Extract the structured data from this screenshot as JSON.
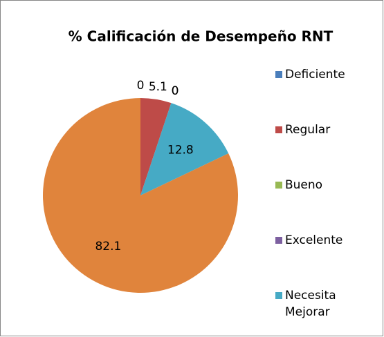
{
  "chart_data": {
    "type": "pie",
    "title": "% Calificación de Desempeño RNT",
    "categories": [
      "Deficiente",
      "Regular",
      "Bueno",
      "Excelente",
      "Necesita Mejorar",
      null
    ],
    "values": [
      0,
      5.1,
      0,
      0,
      12.8,
      82.1
    ],
    "colors": [
      "#4a7ebb",
      "#be4b48",
      "#98b954",
      "#7d60a0",
      "#46aac5",
      "#e0843c"
    ],
    "legend": "right"
  }
}
